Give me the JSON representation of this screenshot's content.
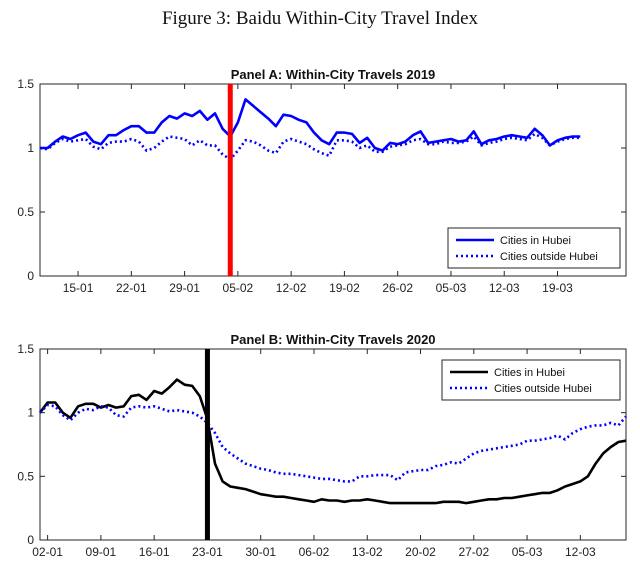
{
  "figure_title": "Figure 3: Baidu Within-City Travel Index",
  "chart_data": [
    {
      "type": "line",
      "title": "Panel A: Within-City Travels 2019",
      "xlabel": "",
      "ylabel": "",
      "ylim": [
        0,
        1.5
      ],
      "yticks": [
        "0",
        "0.5",
        "1",
        "1.5"
      ],
      "xticks": [
        "15-01",
        "22-01",
        "29-01",
        "05-02",
        "12-02",
        "19-02",
        "26-02",
        "05-03",
        "12-03",
        "19-03"
      ],
      "xrange_days": [
        0,
        77
      ],
      "x_start_date": "2019-01-10",
      "event_line": {
        "day": 25,
        "color": "#ff0000"
      },
      "legend": {
        "position": "bottom-right",
        "entries": [
          "Cities in Hubei",
          "Cities outside Hubei"
        ]
      },
      "series": [
        {
          "name": "Cities in Hubei",
          "color": "#0000ff",
          "style": "solid",
          "values": [
            1.0,
            1.0,
            1.05,
            1.09,
            1.07,
            1.1,
            1.12,
            1.05,
            1.03,
            1.1,
            1.1,
            1.14,
            1.17,
            1.17,
            1.12,
            1.12,
            1.2,
            1.25,
            1.23,
            1.27,
            1.25,
            1.29,
            1.22,
            1.27,
            1.15,
            1.09,
            1.2,
            1.38,
            1.33,
            1.28,
            1.23,
            1.17,
            1.26,
            1.25,
            1.22,
            1.2,
            1.12,
            1.06,
            1.03,
            1.12,
            1.12,
            1.11,
            1.04,
            1.08,
            1.0,
            0.98,
            1.04,
            1.03,
            1.05,
            1.1,
            1.13,
            1.04,
            1.05,
            1.06,
            1.07,
            1.05,
            1.06,
            1.13,
            1.03,
            1.06,
            1.07,
            1.09,
            1.1,
            1.09,
            1.08,
            1.15,
            1.1,
            1.02,
            1.06,
            1.08,
            1.09,
            1.09
          ]
        },
        {
          "name": "Cities outside Hubei",
          "color": "#0000ff",
          "style": "dotted",
          "values": [
            1.0,
            0.99,
            1.04,
            1.07,
            1.05,
            1.06,
            1.07,
            1.01,
            0.99,
            1.04,
            1.05,
            1.05,
            1.07,
            1.05,
            0.98,
            1.0,
            1.05,
            1.09,
            1.08,
            1.07,
            1.02,
            1.06,
            1.02,
            1.02,
            0.95,
            0.91,
            0.98,
            1.06,
            1.05,
            1.02,
            0.98,
            0.96,
            1.05,
            1.07,
            1.05,
            1.03,
            0.99,
            0.96,
            0.94,
            1.06,
            1.06,
            1.05,
            1.0,
            1.02,
            0.97,
            0.97,
            1.01,
            1.02,
            1.03,
            1.06,
            1.07,
            1.03,
            1.03,
            1.05,
            1.04,
            1.04,
            1.05,
            1.09,
            1.02,
            1.04,
            1.05,
            1.07,
            1.08,
            1.07,
            1.06,
            1.11,
            1.08,
            1.02,
            1.05,
            1.07,
            1.08,
            1.08
          ]
        }
      ]
    },
    {
      "type": "line",
      "title": "Panel B: Within-City Travels 2020",
      "xlabel": "",
      "ylabel": "",
      "ylim": [
        0,
        1.5
      ],
      "yticks": [
        "0",
        "0.5",
        "1",
        "1.5"
      ],
      "xticks": [
        "02-01",
        "09-01",
        "16-01",
        "23-01",
        "30-01",
        "06-02",
        "13-02",
        "20-02",
        "27-02",
        "05-03",
        "12-03"
      ],
      "xrange_days": [
        0,
        77
      ],
      "x_start_date": "2020-01-01",
      "event_line": {
        "day": 22,
        "color": "#000000"
      },
      "legend": {
        "position": "top-right",
        "entries": [
          "Cities in Hubei",
          "Cities outside Hubei"
        ]
      },
      "series": [
        {
          "name": "Cities in Hubei",
          "color": "#000000",
          "style": "solid",
          "values": [
            1.0,
            1.08,
            1.08,
            1.0,
            0.96,
            1.05,
            1.07,
            1.07,
            1.04,
            1.06,
            1.04,
            1.05,
            1.13,
            1.14,
            1.1,
            1.17,
            1.15,
            1.2,
            1.26,
            1.22,
            1.21,
            1.13,
            0.95,
            0.6,
            0.46,
            0.42,
            0.41,
            0.4,
            0.38,
            0.36,
            0.35,
            0.34,
            0.34,
            0.33,
            0.32,
            0.31,
            0.3,
            0.32,
            0.31,
            0.31,
            0.3,
            0.31,
            0.31,
            0.32,
            0.31,
            0.3,
            0.29,
            0.29,
            0.29,
            0.29,
            0.29,
            0.29,
            0.29,
            0.3,
            0.3,
            0.3,
            0.29,
            0.3,
            0.31,
            0.32,
            0.32,
            0.33,
            0.33,
            0.34,
            0.35,
            0.36,
            0.37,
            0.37,
            0.39,
            0.42,
            0.44,
            0.46,
            0.5,
            0.6,
            0.68,
            0.73,
            0.77,
            0.78
          ]
        },
        {
          "name": "Cities outside Hubei",
          "color": "#0000ff",
          "style": "dotted",
          "values": [
            1.0,
            1.06,
            1.05,
            0.98,
            0.94,
            1.0,
            1.03,
            1.02,
            1.05,
            1.04,
            0.98,
            0.97,
            1.04,
            1.05,
            1.04,
            1.05,
            1.03,
            1.01,
            1.02,
            1.01,
            1.0,
            0.97,
            0.92,
            0.84,
            0.73,
            0.68,
            0.64,
            0.6,
            0.58,
            0.56,
            0.55,
            0.53,
            0.52,
            0.52,
            0.51,
            0.5,
            0.49,
            0.48,
            0.48,
            0.47,
            0.46,
            0.46,
            0.5,
            0.5,
            0.51,
            0.51,
            0.51,
            0.47,
            0.53,
            0.54,
            0.55,
            0.55,
            0.58,
            0.59,
            0.61,
            0.6,
            0.64,
            0.68,
            0.7,
            0.71,
            0.72,
            0.73,
            0.74,
            0.75,
            0.78,
            0.78,
            0.79,
            0.8,
            0.82,
            0.79,
            0.84,
            0.87,
            0.89,
            0.9,
            0.9,
            0.92,
            0.9,
            0.97
          ]
        }
      ]
    }
  ]
}
